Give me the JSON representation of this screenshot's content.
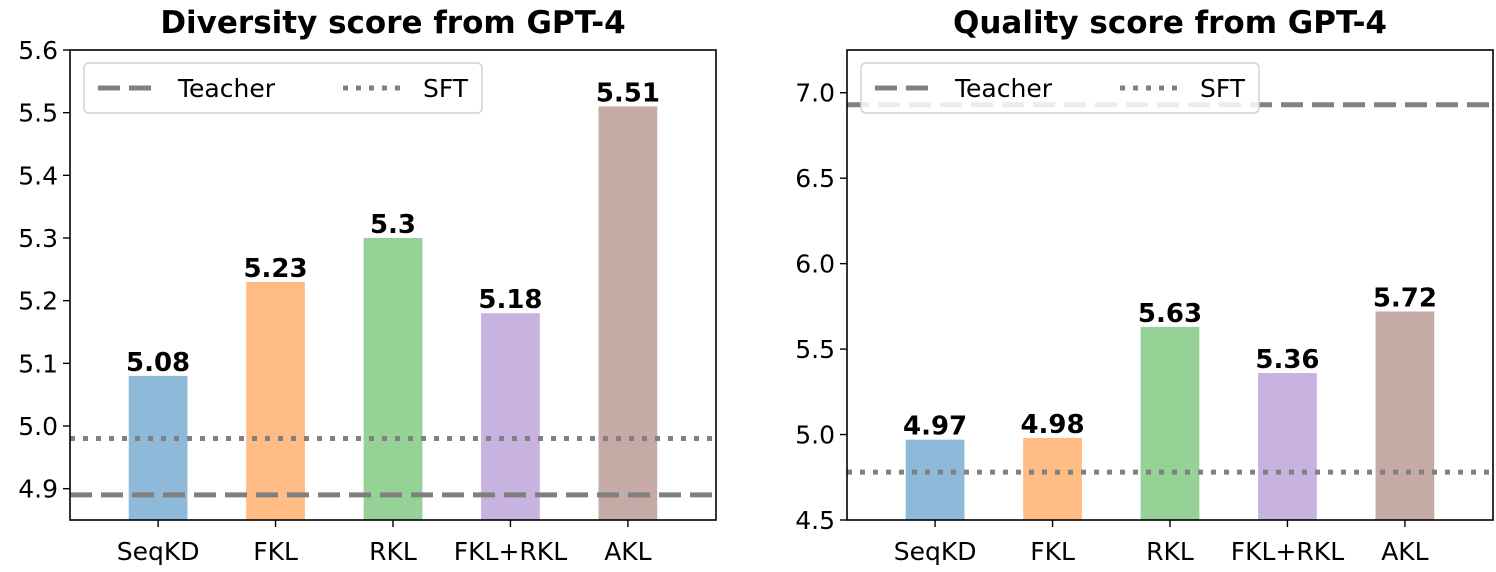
{
  "chart_data": [
    {
      "type": "bar",
      "title": "Diversity score from GPT-4",
      "xlabel": "",
      "ylabel": "",
      "categories": [
        "SeqKD",
        "FKL",
        "RKL",
        "FKL+RKL",
        "AKL"
      ],
      "values": [
        5.08,
        5.23,
        5.3,
        5.18,
        5.51
      ],
      "value_labels": [
        "5.08",
        "5.23",
        "5.3",
        "5.18",
        "5.51"
      ],
      "colors": [
        "#8fb9d9",
        "#ffbd85",
        "#96d196",
        "#c8b3e0",
        "#c5aaa5"
      ],
      "ylim": [
        4.85,
        5.6
      ],
      "yticks": [
        4.9,
        5.0,
        5.1,
        5.2,
        5.3,
        5.4,
        5.5,
        5.6
      ],
      "ytick_labels": [
        "4.9",
        "5.0",
        "5.1",
        "5.2",
        "5.3",
        "5.4",
        "5.5",
        "5.6"
      ],
      "reference_lines": [
        {
          "name": "Teacher",
          "value": 4.89,
          "style": "dashed",
          "color": "#808080"
        },
        {
          "name": "SFT",
          "value": 4.98,
          "style": "dotted",
          "color": "#808080"
        }
      ],
      "legend": {
        "position": "top-left",
        "entries": [
          "Teacher",
          "SFT"
        ]
      }
    },
    {
      "type": "bar",
      "title": "Quality score from GPT-4",
      "xlabel": "",
      "ylabel": "",
      "categories": [
        "SeqKD",
        "FKL",
        "RKL",
        "FKL+RKL",
        "AKL"
      ],
      "values": [
        4.97,
        4.98,
        5.63,
        5.36,
        5.72
      ],
      "value_labels": [
        "4.97",
        "4.98",
        "5.63",
        "5.36",
        "5.72"
      ],
      "colors": [
        "#8fb9d9",
        "#ffbd85",
        "#96d196",
        "#c8b3e0",
        "#c5aaa5"
      ],
      "ylim": [
        4.5,
        7.25
      ],
      "yticks": [
        4.5,
        5.0,
        5.5,
        6.0,
        6.5,
        7.0
      ],
      "ytick_labels": [
        "4.5",
        "5.0",
        "5.5",
        "6.0",
        "6.5",
        "7.0"
      ],
      "reference_lines": [
        {
          "name": "Teacher",
          "value": 6.93,
          "style": "dashed",
          "color": "#808080"
        },
        {
          "name": "SFT",
          "value": 4.78,
          "style": "dotted",
          "color": "#808080"
        }
      ],
      "legend": {
        "position": "top-left",
        "entries": [
          "Teacher",
          "SFT"
        ]
      }
    }
  ]
}
